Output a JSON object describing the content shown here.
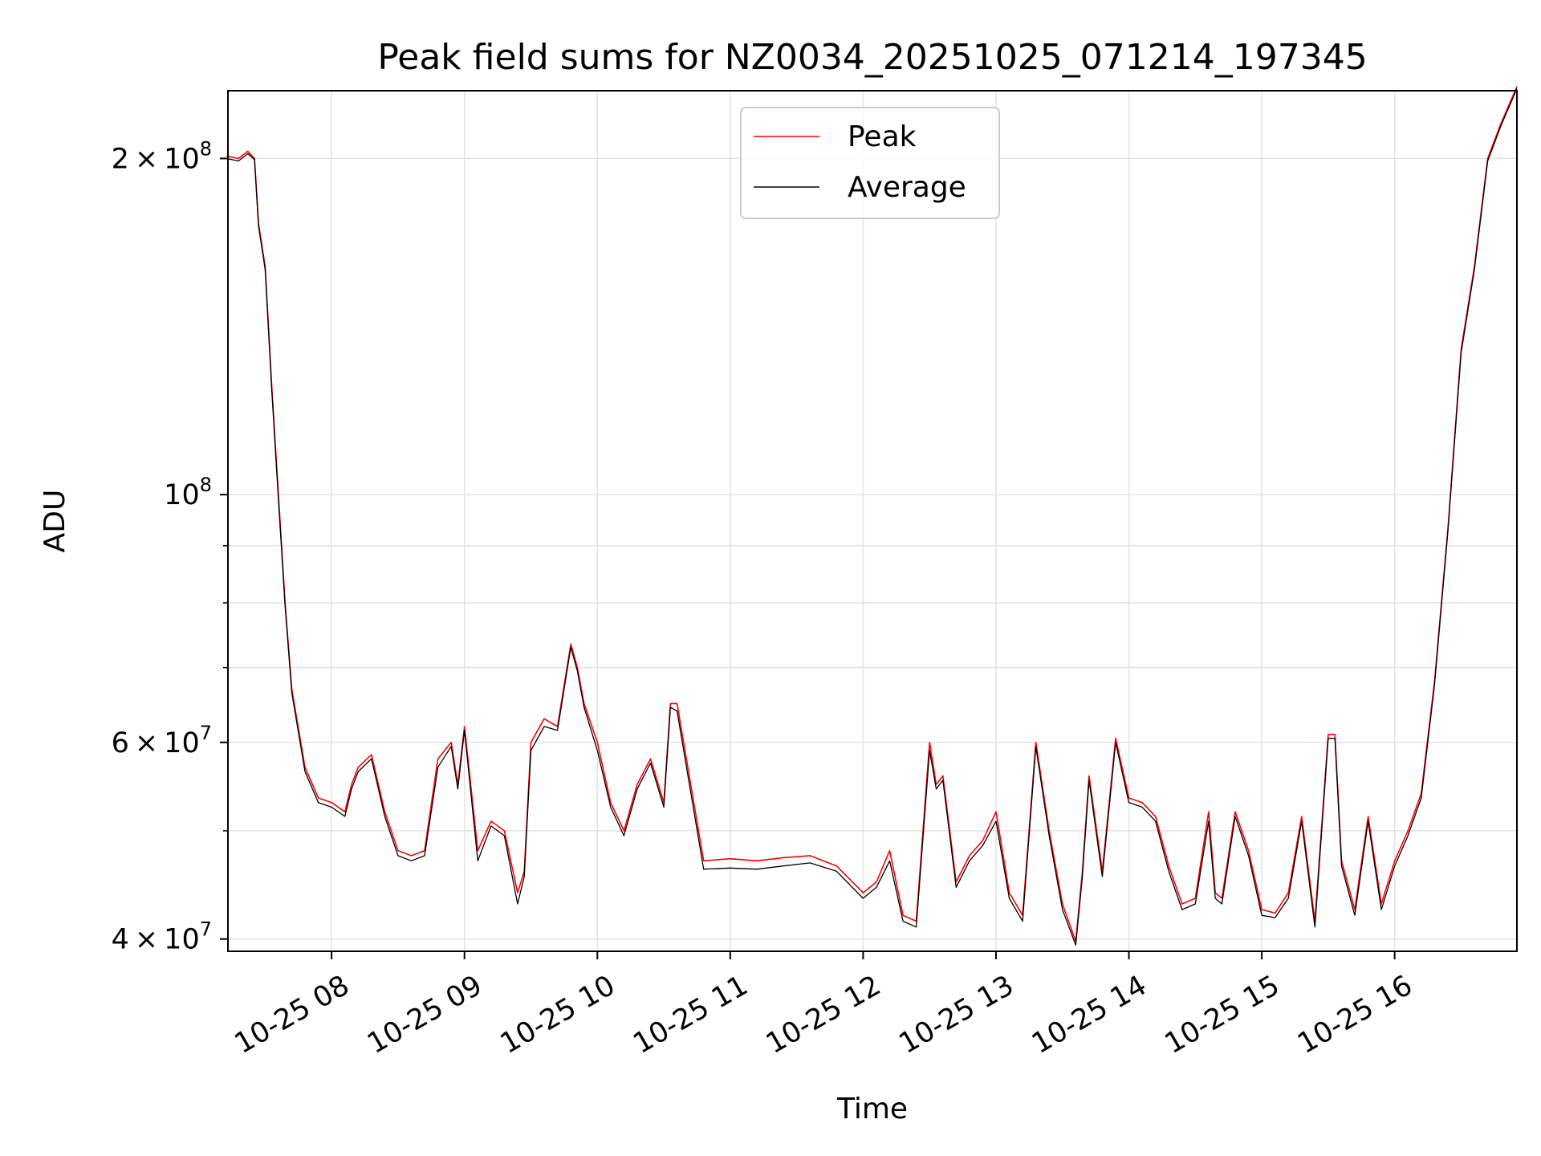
{
  "chart_data": {
    "type": "line",
    "title": "Peak field sums for NZ0034_20251025_071214_197345",
    "xlabel": "Time",
    "ylabel": "ADU",
    "yscale": "log",
    "xlim_hours": [
      7.22,
      16.92
    ],
    "ylim": [
      39000000,
      230000000
    ],
    "x_ticks": [
      {
        "value": 8,
        "label": "10-25 08"
      },
      {
        "value": 9,
        "label": "10-25 09"
      },
      {
        "value": 10,
        "label": "10-25 10"
      },
      {
        "value": 11,
        "label": "10-25 11"
      },
      {
        "value": 12,
        "label": "10-25 12"
      },
      {
        "value": 13,
        "label": "10-25 13"
      },
      {
        "value": 14,
        "label": "10-25 14"
      },
      {
        "value": 15,
        "label": "10-25 15"
      },
      {
        "value": 16,
        "label": "10-25 16"
      }
    ],
    "y_major_ticks": [
      {
        "value": 40000000,
        "mantissa": "4",
        "exponent": "7"
      },
      {
        "value": 60000000,
        "mantissa": "6",
        "exponent": "7"
      },
      {
        "value": 100000000,
        "mantissa": "",
        "exponent": "8"
      },
      {
        "value": 200000000,
        "mantissa": "2",
        "exponent": "8"
      }
    ],
    "y_minor_ticks": [
      50000000,
      70000000,
      80000000,
      90000000
    ],
    "grid": true,
    "legend": {
      "position": "upper center",
      "entries": [
        "Peak",
        "Average"
      ]
    },
    "series": [
      {
        "name": "Peak",
        "color": "#ff0000",
        "x_hours": [
          7.21,
          7.3,
          7.37,
          7.42,
          7.45,
          7.5,
          7.55,
          7.6,
          7.65,
          7.7,
          7.8,
          7.9,
          8.0,
          8.1,
          8.15,
          8.2,
          8.3,
          8.4,
          8.5,
          8.6,
          8.7,
          8.8,
          8.9,
          8.95,
          9.0,
          9.1,
          9.2,
          9.3,
          9.4,
          9.45,
          9.5,
          9.6,
          9.7,
          9.8,
          9.85,
          9.9,
          10.0,
          10.1,
          10.2,
          10.3,
          10.4,
          10.5,
          10.55,
          10.6,
          10.8,
          11.0,
          11.2,
          11.4,
          11.6,
          11.8,
          12.0,
          12.1,
          12.2,
          12.3,
          12.4,
          12.5,
          12.55,
          12.6,
          12.7,
          12.8,
          12.9,
          13.0,
          13.1,
          13.2,
          13.3,
          13.4,
          13.5,
          13.6,
          13.65,
          13.7,
          13.8,
          13.9,
          14.0,
          14.1,
          14.2,
          14.3,
          14.4,
          14.5,
          14.6,
          14.65,
          14.7,
          14.8,
          14.9,
          15.0,
          15.1,
          15.2,
          15.3,
          15.4,
          15.5,
          15.55,
          15.6,
          15.7,
          15.8,
          15.9,
          16.0,
          16.1,
          16.2,
          16.3,
          16.4,
          16.5,
          16.6,
          16.7,
          16.8,
          16.92
        ],
        "values": [
          201000000,
          200000000,
          203000000,
          200000000,
          175000000,
          160000000,
          125000000,
          100000000,
          80000000,
          67000000,
          57000000,
          53500000,
          53000000,
          52000000,
          55000000,
          57000000,
          58500000,
          52000000,
          48000000,
          47500000,
          48000000,
          58000000,
          60000000,
          55000000,
          62000000,
          48000000,
          51000000,
          50000000,
          44000000,
          46000000,
          60000000,
          63000000,
          62000000,
          73500000,
          70000000,
          65000000,
          60000000,
          53000000,
          50000000,
          55000000,
          58000000,
          53000000,
          65000000,
          65000000,
          47000000,
          47200000,
          47000000,
          47300000,
          47500000,
          46500000,
          44000000,
          45000000,
          48000000,
          42000000,
          41500000,
          60000000,
          55000000,
          56000000,
          45000000,
          47500000,
          49000000,
          52000000,
          44000000,
          42000000,
          60000000,
          50000000,
          43000000,
          39800000,
          46000000,
          56000000,
          46000000,
          60500000,
          53500000,
          53000000,
          51500000,
          46500000,
          43000000,
          43500000,
          52000000,
          44000000,
          43500000,
          52000000,
          48000000,
          42500000,
          42200000,
          44000000,
          51500000,
          41500000,
          61000000,
          61000000,
          47000000,
          42500000,
          51500000,
          43000000,
          47000000,
          50000000,
          54000000,
          68000000,
          93000000,
          135000000,
          160000000,
          200000000,
          215000000,
          232000000
        ]
      },
      {
        "name": "Average",
        "color": "#000000",
        "x_hours": [
          7.21,
          7.3,
          7.37,
          7.42,
          7.45,
          7.5,
          7.55,
          7.6,
          7.65,
          7.7,
          7.8,
          7.9,
          8.0,
          8.1,
          8.15,
          8.2,
          8.3,
          8.4,
          8.5,
          8.6,
          8.7,
          8.8,
          8.9,
          8.95,
          9.0,
          9.1,
          9.2,
          9.3,
          9.4,
          9.45,
          9.5,
          9.6,
          9.7,
          9.8,
          9.85,
          9.9,
          10.0,
          10.1,
          10.2,
          10.3,
          10.4,
          10.5,
          10.55,
          10.6,
          10.8,
          11.0,
          11.2,
          11.4,
          11.6,
          11.8,
          12.0,
          12.1,
          12.2,
          12.3,
          12.4,
          12.5,
          12.55,
          12.6,
          12.7,
          12.8,
          12.9,
          13.0,
          13.1,
          13.2,
          13.3,
          13.4,
          13.5,
          13.6,
          13.65,
          13.7,
          13.8,
          13.9,
          14.0,
          14.1,
          14.2,
          14.3,
          14.4,
          14.5,
          14.6,
          14.65,
          14.7,
          14.8,
          14.9,
          15.0,
          15.1,
          15.2,
          15.3,
          15.4,
          15.5,
          15.55,
          15.6,
          15.7,
          15.8,
          15.9,
          16.0,
          16.1,
          16.2,
          16.3,
          16.4,
          16.5,
          16.6,
          16.7,
          16.8,
          16.92
        ],
        "values": [
          200000000,
          199000000,
          202000000,
          199500000,
          174000000,
          159000000,
          124000000,
          99000000,
          79500000,
          66500000,
          56500000,
          53000000,
          52500000,
          51500000,
          54500000,
          56500000,
          58000000,
          51500000,
          47500000,
          47000000,
          47500000,
          57000000,
          59500000,
          54500000,
          61500000,
          47000000,
          50500000,
          49500000,
          43000000,
          45500000,
          59000000,
          62000000,
          61500000,
          73000000,
          69500000,
          64500000,
          59000000,
          52500000,
          49500000,
          54500000,
          57500000,
          52500000,
          64500000,
          64000000,
          46200000,
          46300000,
          46200000,
          46500000,
          46800000,
          46000000,
          43500000,
          44500000,
          47000000,
          41500000,
          41000000,
          59000000,
          54500000,
          55500000,
          44500000,
          47000000,
          48500000,
          51000000,
          43500000,
          41500000,
          59500000,
          49500000,
          42500000,
          39500000,
          45500000,
          55500000,
          45500000,
          60000000,
          53000000,
          52500000,
          51000000,
          46000000,
          42500000,
          43000000,
          51000000,
          43500000,
          43000000,
          51500000,
          47500000,
          42000000,
          41800000,
          43500000,
          51000000,
          41000000,
          60500000,
          60500000,
          46500000,
          42000000,
          51000000,
          42500000,
          46500000,
          49500000,
          53500000,
          67500000,
          92500000,
          134000000,
          159000000,
          199000000,
          214000000,
          231000000
        ]
      }
    ]
  }
}
